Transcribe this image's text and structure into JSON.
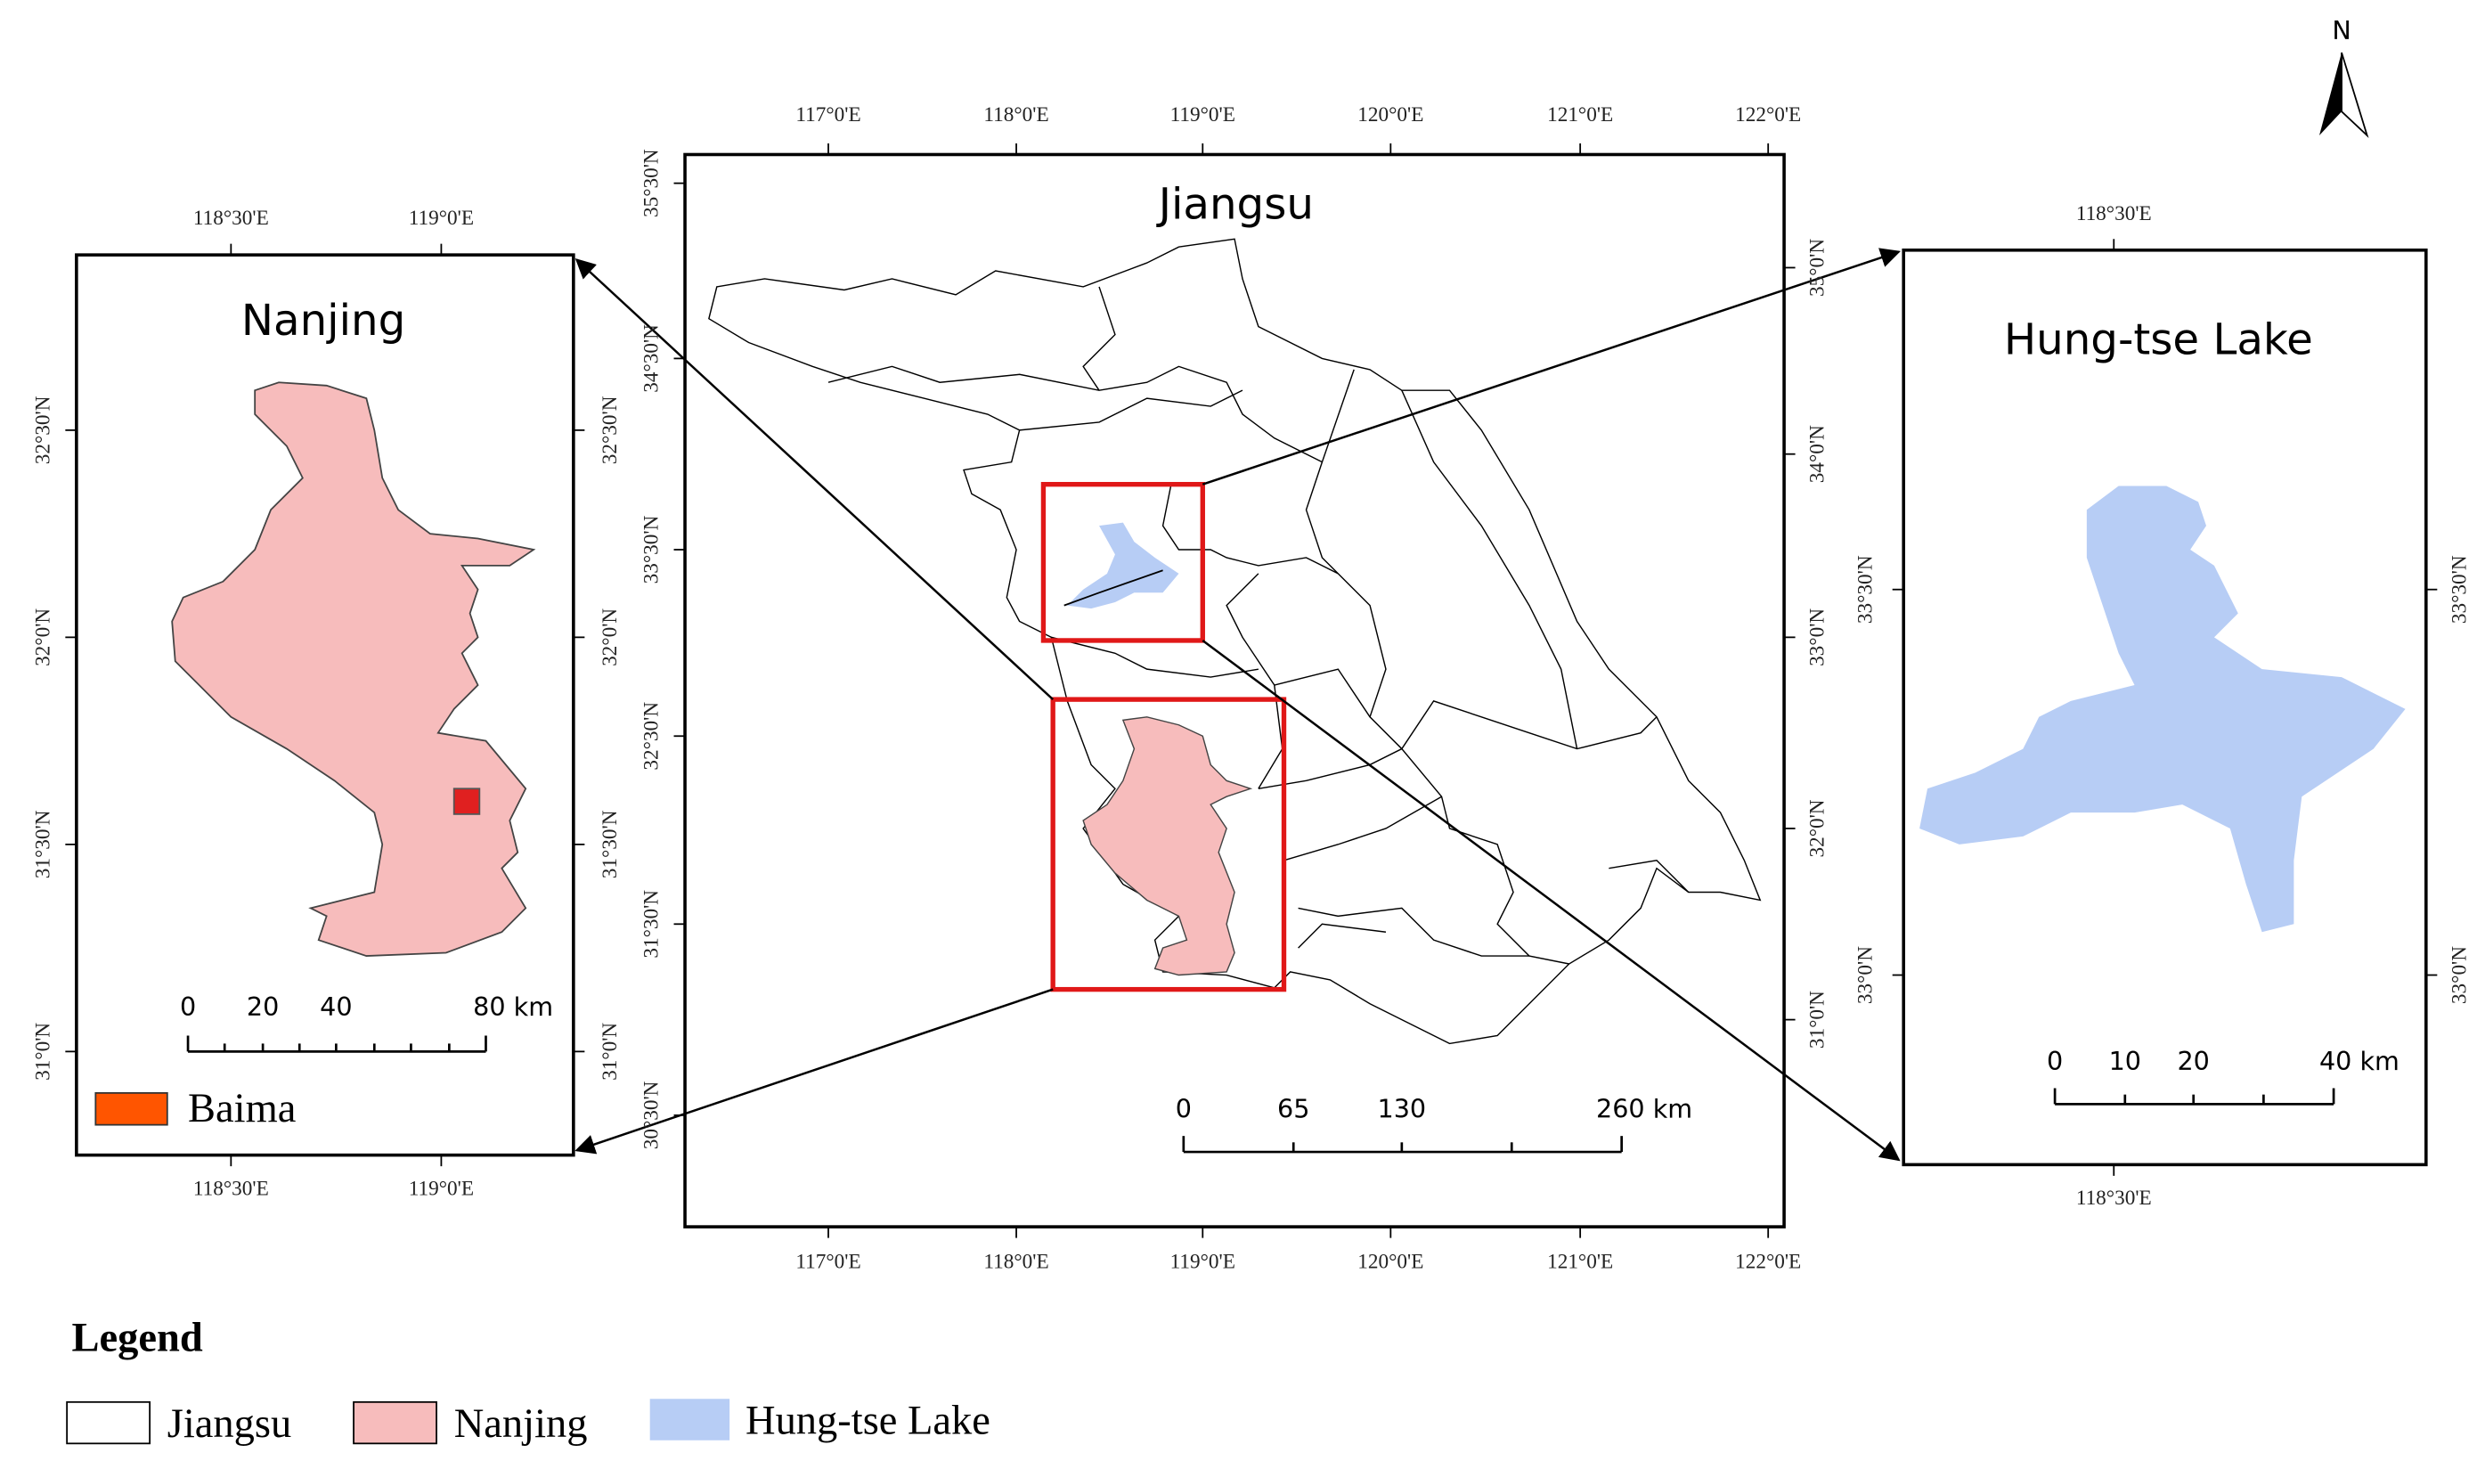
{
  "north_arrow": "N",
  "panels": [
    {
      "title": "Nanjing",
      "lon_top": [
        "118°30'E",
        "119°0'E"
      ],
      "lon_bottom": [
        "118°30'E",
        "119°0'E"
      ],
      "lat_left": [
        "32°30'N",
        "32°0'N",
        "31°30'N",
        "31°0'N"
      ],
      "lat_right": [
        "32°30'N",
        "32°0'N",
        "31°30'N",
        "31°0'N"
      ],
      "scale": [
        "0",
        "20",
        "40",
        "80 km"
      ],
      "legend": "Baima"
    },
    {
      "title": "Jiangsu",
      "lon_top": [
        "117°0'E",
        "118°0'E",
        "119°0'E",
        "120°0'E",
        "121°0'E",
        "122°0'E"
      ],
      "lon_bottom": [
        "117°0'E",
        "118°0'E",
        "119°0'E",
        "120°0'E",
        "121°0'E",
        "122°0'E"
      ],
      "lat_left": [
        "35°30'N",
        "34°30'N",
        "33°30'N",
        "32°30'N",
        "31°30'N",
        "30°30'N"
      ],
      "lat_right": [
        "35°0'N",
        "34°0'N",
        "33°0'N",
        "32°0'N",
        "31°0'N"
      ],
      "scale": [
        "0",
        "65",
        "130",
        "260 km"
      ]
    },
    {
      "title": "Hung-tse Lake",
      "lon_top": [
        "118°30'E"
      ],
      "lon_bottom": [
        "118°30'E"
      ],
      "lat_left": [
        "33°30'N",
        "33°0'N"
      ],
      "lat_right": [
        "33°30'N",
        "33°0'N"
      ],
      "scale": [
        "0",
        "10",
        "20",
        "40 km"
      ]
    }
  ],
  "legend": {
    "title": "Legend",
    "items": [
      "Jiangsu",
      "Nanjing",
      "Hung-tse Lake"
    ]
  }
}
